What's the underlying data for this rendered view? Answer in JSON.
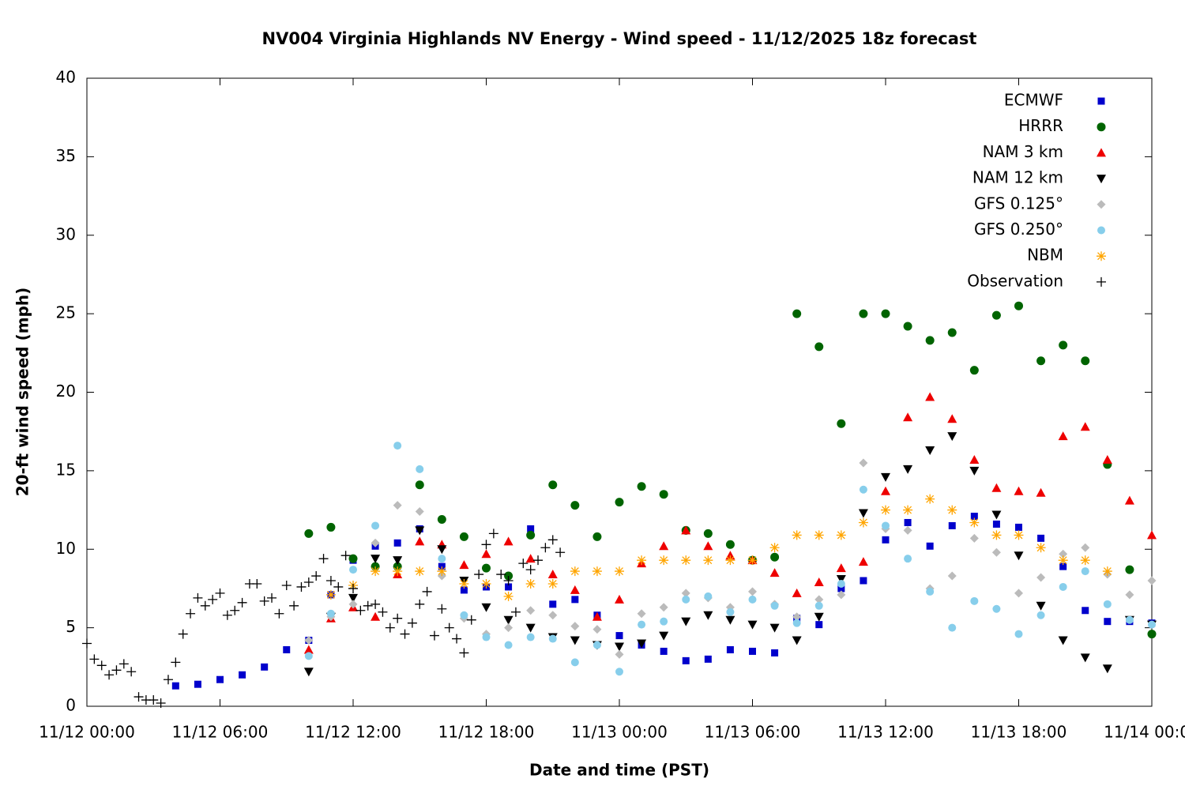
{
  "chart_data": {
    "type": "scatter",
    "title": "NV004 Virginia Highlands NV Energy - Wind speed - 11/12/2025 18z forecast",
    "x_label": "Date and time (PST)",
    "y_label": "20-ft wind speed (mph)",
    "xlim": [
      "11/12 00:00",
      "11/14 00:00"
    ],
    "xticks": [
      "11/12 00:00",
      "11/12 06:00",
      "11/12 12:00",
      "11/12 18:00",
      "11/13 00:00",
      "11/13 06:00",
      "11/13 12:00",
      "11/13 18:00",
      "11/14 00:00"
    ],
    "ylim": [
      0,
      40
    ],
    "yticks": [
      0,
      5,
      10,
      15,
      20,
      25,
      30,
      35,
      40
    ],
    "legend": "upper right",
    "series": [
      {
        "name": "ECMWF",
        "color": "#0000cc",
        "marker": "square",
        "x": [
          "11/12 04:00",
          "11/12 05:00",
          "11/12 06:00",
          "11/12 07:00",
          "11/12 08:00",
          "11/12 09:00",
          "11/12 10:00",
          "11/12 11:00",
          "11/12 12:00",
          "11/12 13:00",
          "11/12 14:00",
          "11/12 15:00",
          "11/12 16:00",
          "11/12 17:00",
          "11/12 18:00",
          "11/12 19:00",
          "11/12 20:00",
          "11/12 21:00",
          "11/12 22:00",
          "11/12 23:00",
          "11/13 00:00",
          "11/13 01:00",
          "11/13 02:00",
          "11/13 03:00",
          "11/13 04:00",
          "11/13 05:00",
          "11/13 06:00",
          "11/13 07:00",
          "11/13 08:00",
          "11/13 09:00",
          "11/13 10:00",
          "11/13 11:00",
          "11/13 12:00",
          "11/13 13:00",
          "11/13 14:00",
          "11/13 15:00",
          "11/13 16:00",
          "11/13 17:00",
          "11/13 18:00",
          "11/13 19:00",
          "11/13 20:00",
          "11/13 21:00",
          "11/13 22:00",
          "11/13 23:00",
          "11/14 00:00"
        ],
        "values": [
          1.3,
          1.4,
          1.7,
          2.0,
          2.5,
          3.6,
          4.2,
          7.1,
          9.3,
          10.2,
          10.4,
          11.3,
          8.9,
          7.4,
          7.6,
          7.6,
          11.3,
          6.5,
          6.8,
          5.8,
          4.5,
          3.9,
          3.5,
          2.9,
          3.0,
          3.6,
          3.5,
          3.4,
          5.6,
          5.2,
          7.5,
          8.0,
          10.6,
          11.7,
          10.2,
          11.5,
          12.1,
          11.6,
          11.4,
          10.7,
          8.9,
          6.1,
          5.4,
          5.4,
          5.3
        ]
      },
      {
        "name": "HRRR",
        "color": "#006400",
        "marker": "circle",
        "x": [
          "11/12 10:00",
          "11/12 11:00",
          "11/12 12:00",
          "11/12 13:00",
          "11/12 14:00",
          "11/12 15:00",
          "11/12 16:00",
          "11/12 17:00",
          "11/12 18:00",
          "11/12 19:00",
          "11/12 20:00",
          "11/12 21:00",
          "11/12 22:00",
          "11/12 23:00",
          "11/13 00:00",
          "11/13 01:00",
          "11/13 02:00",
          "11/13 03:00",
          "11/13 04:00",
          "11/13 05:00",
          "11/13 06:00",
          "11/13 07:00",
          "11/13 08:00",
          "11/13 09:00",
          "11/13 10:00",
          "11/13 11:00",
          "11/13 12:00",
          "11/13 13:00",
          "11/13 14:00",
          "11/13 15:00",
          "11/13 16:00",
          "11/13 17:00",
          "11/13 18:00",
          "11/13 19:00",
          "11/13 20:00",
          "11/13 21:00",
          "11/13 22:00",
          "11/13 23:00",
          "11/14 00:00"
        ],
        "values": [
          11.0,
          11.4,
          9.4,
          8.9,
          8.9,
          14.1,
          11.9,
          10.8,
          8.8,
          8.3,
          10.9,
          14.1,
          12.8,
          10.8,
          13.0,
          14.0,
          13.5,
          11.2,
          11.0,
          10.3,
          9.3,
          9.5,
          25.0,
          22.9,
          18.0,
          25.0,
          25.0,
          24.2,
          23.3,
          23.8,
          21.4,
          24.9,
          25.5,
          22.0,
          23.0,
          22.0,
          15.4,
          8.7,
          4.6
        ]
      },
      {
        "name": "NAM 3 km",
        "color": "#ee0000",
        "marker": "triangle",
        "x": [
          "11/12 10:00",
          "11/12 11:00",
          "11/12 12:00",
          "11/12 13:00",
          "11/12 14:00",
          "11/12 15:00",
          "11/12 16:00",
          "11/12 17:00",
          "11/12 18:00",
          "11/12 19:00",
          "11/12 20:00",
          "11/12 21:00",
          "11/12 22:00",
          "11/12 23:00",
          "11/13 00:00",
          "11/13 01:00",
          "11/13 02:00",
          "11/13 03:00",
          "11/13 04:00",
          "11/13 05:00",
          "11/13 06:00",
          "11/13 07:00",
          "11/13 08:00",
          "11/13 09:00",
          "11/13 10:00",
          "11/13 11:00",
          "11/13 12:00",
          "11/13 13:00",
          "11/13 14:00",
          "11/13 15:00",
          "11/13 16:00",
          "11/13 17:00",
          "11/13 18:00",
          "11/13 19:00",
          "11/13 20:00",
          "11/13 21:00",
          "11/13 22:00",
          "11/13 23:00",
          "11/14 00:00"
        ],
        "values": [
          3.6,
          5.6,
          6.3,
          5.7,
          8.4,
          10.5,
          10.3,
          9.0,
          9.7,
          10.5,
          9.4,
          8.4,
          7.4,
          5.7,
          6.8,
          9.1,
          10.2,
          11.2,
          10.2,
          9.6,
          9.3,
          8.5,
          7.2,
          7.9,
          8.8,
          9.2,
          13.7,
          18.4,
          19.7,
          18.3,
          15.7,
          13.9,
          13.7,
          13.6,
          17.2,
          17.8,
          15.7,
          13.1,
          10.9
        ]
      },
      {
        "name": "NAM 12 km",
        "color": "#000000",
        "marker": "triangle-down",
        "x": [
          "11/12 10:00",
          "11/12 11:00",
          "11/12 12:00",
          "11/12 13:00",
          "11/12 14:00",
          "11/12 15:00",
          "11/12 16:00",
          "11/12 17:00",
          "11/12 18:00",
          "11/12 19:00",
          "11/12 20:00",
          "11/12 21:00",
          "11/12 22:00",
          "11/12 23:00",
          "11/13 00:00",
          "11/13 01:00",
          "11/13 02:00",
          "11/13 03:00",
          "11/13 04:00",
          "11/13 05:00",
          "11/13 06:00",
          "11/13 07:00",
          "11/13 08:00",
          "11/13 09:00",
          "11/13 10:00",
          "11/13 11:00",
          "11/13 12:00",
          "11/13 13:00",
          "11/13 14:00",
          "11/13 15:00",
          "11/13 16:00",
          "11/13 17:00",
          "11/13 18:00",
          "11/13 19:00",
          "11/13 20:00",
          "11/13 21:00",
          "11/13 22:00",
          "11/13 23:00",
          "11/14 00:00"
        ],
        "values": [
          2.2,
          5.7,
          6.9,
          9.4,
          9.3,
          11.2,
          10.0,
          8.0,
          6.3,
          5.5,
          5.0,
          4.4,
          4.2,
          3.9,
          3.8,
          4.0,
          4.5,
          5.4,
          5.8,
          5.5,
          5.2,
          5.0,
          4.2,
          5.7,
          8.1,
          12.3,
          14.6,
          15.1,
          16.3,
          17.2,
          15.0,
          12.2,
          9.6,
          6.4,
          4.2,
          3.1,
          2.4,
          5.5,
          5.2
        ]
      },
      {
        "name": "GFS 0.125°",
        "color": "#bbbbbb",
        "marker": "diamond",
        "x": [
          "11/12 10:00",
          "11/12 11:00",
          "11/12 12:00",
          "11/12 13:00",
          "11/12 14:00",
          "11/12 15:00",
          "11/12 16:00",
          "11/12 17:00",
          "11/12 18:00",
          "11/12 19:00",
          "11/12 20:00",
          "11/12 21:00",
          "11/12 22:00",
          "11/12 23:00",
          "11/13 00:00",
          "11/13 01:00",
          "11/13 02:00",
          "11/13 03:00",
          "11/13 04:00",
          "11/13 05:00",
          "11/13 06:00",
          "11/13 07:00",
          "11/13 08:00",
          "11/13 09:00",
          "11/13 10:00",
          "11/13 11:00",
          "11/13 12:00",
          "11/13 13:00",
          "11/13 14:00",
          "11/13 15:00",
          "11/13 16:00",
          "11/13 17:00",
          "11/13 18:00",
          "11/13 19:00",
          "11/13 20:00",
          "11/13 21:00",
          "11/13 22:00",
          "11/13 23:00",
          "11/14 00:00"
        ],
        "values": [
          4.2,
          5.7,
          6.5,
          10.4,
          12.8,
          12.4,
          8.3,
          5.6,
          4.6,
          5.0,
          6.1,
          5.8,
          5.1,
          4.9,
          3.3,
          5.9,
          6.3,
          7.2,
          6.9,
          6.3,
          7.3,
          6.5,
          5.7,
          6.8,
          7.1,
          15.5,
          11.3,
          11.2,
          7.5,
          8.3,
          10.7,
          9.8,
          7.2,
          8.2,
          9.7,
          10.1,
          8.4,
          7.1,
          8.0
        ]
      },
      {
        "name": "GFS 0.250°",
        "color": "#87ceeb",
        "marker": "hexagon",
        "x": [
          "11/12 10:00",
          "11/12 11:00",
          "11/12 12:00",
          "11/12 13:00",
          "11/12 14:00",
          "11/12 15:00",
          "11/12 16:00",
          "11/12 17:00",
          "11/12 18:00",
          "11/12 19:00",
          "11/12 20:00",
          "11/12 21:00",
          "11/12 22:00",
          "11/12 23:00",
          "11/13 00:00",
          "11/13 01:00",
          "11/13 02:00",
          "11/13 03:00",
          "11/13 04:00",
          "11/13 05:00",
          "11/13 06:00",
          "11/13 07:00",
          "11/13 08:00",
          "11/13 09:00",
          "11/13 10:00",
          "11/13 11:00",
          "11/13 12:00",
          "11/13 13:00",
          "11/13 14:00",
          "11/13 15:00",
          "11/13 16:00",
          "11/13 17:00",
          "11/13 18:00",
          "11/13 19:00",
          "11/13 20:00",
          "11/13 21:00",
          "11/13 22:00",
          "11/13 23:00",
          "11/14 00:00"
        ],
        "values": [
          3.2,
          5.9,
          8.7,
          11.5,
          16.6,
          15.1,
          9.4,
          5.8,
          4.4,
          3.9,
          4.4,
          4.3,
          2.8,
          3.9,
          2.2,
          5.2,
          5.4,
          6.8,
          7.0,
          6.0,
          6.8,
          6.4,
          5.3,
          6.4,
          7.8,
          13.8,
          11.5,
          9.4,
          7.3,
          5.0,
          6.7,
          6.2,
          4.6,
          5.8,
          7.6,
          8.6,
          6.5,
          5.5,
          5.2
        ]
      },
      {
        "name": "NBM",
        "color": "#ffa500",
        "marker": "asterisk",
        "x": [
          "11/12 11:00",
          "11/12 12:00",
          "11/12 13:00",
          "11/12 14:00",
          "11/12 15:00",
          "11/12 16:00",
          "11/12 17:00",
          "11/12 18:00",
          "11/12 19:00",
          "11/12 20:00",
          "11/12 21:00",
          "11/12 22:00",
          "11/12 23:00",
          "11/13 00:00",
          "11/13 01:00",
          "11/13 02:00",
          "11/13 03:00",
          "11/13 04:00",
          "11/13 05:00",
          "11/13 06:00",
          "11/13 07:00",
          "11/13 08:00",
          "11/13 09:00",
          "11/13 10:00",
          "11/13 11:00",
          "11/13 12:00",
          "11/13 13:00",
          "11/13 14:00",
          "11/13 15:00",
          "11/13 16:00",
          "11/13 17:00",
          "11/13 18:00",
          "11/13 19:00",
          "11/13 20:00",
          "11/13 21:00",
          "11/13 22:00"
        ],
        "values": [
          7.1,
          7.7,
          8.6,
          8.6,
          8.6,
          8.6,
          7.8,
          7.8,
          7.0,
          7.8,
          7.8,
          8.6,
          8.6,
          8.6,
          9.3,
          9.3,
          9.3,
          9.3,
          9.3,
          9.3,
          10.1,
          10.9,
          10.9,
          10.9,
          11.7,
          12.5,
          12.5,
          13.2,
          12.5,
          11.7,
          10.9,
          10.9,
          10.1,
          9.3,
          9.3,
          8.6
        ]
      },
      {
        "name": "Observation",
        "color": "#000000",
        "marker": "plus",
        "x": [
          "11/12 00:00",
          "11/12 00:20",
          "11/12 00:40",
          "11/12 01:00",
          "11/12 01:20",
          "11/12 01:40",
          "11/12 02:00",
          "11/12 02:20",
          "11/12 02:40",
          "11/12 03:00",
          "11/12 03:20",
          "11/12 03:40",
          "11/12 04:00",
          "11/12 04:20",
          "11/12 04:40",
          "11/12 05:00",
          "11/12 05:20",
          "11/12 05:40",
          "11/12 06:00",
          "11/12 06:20",
          "11/12 06:40",
          "11/12 07:00",
          "11/12 07:20",
          "11/12 07:40",
          "11/12 08:00",
          "11/12 08:20",
          "11/12 08:40",
          "11/12 09:00",
          "11/12 09:20",
          "11/12 09:40",
          "11/12 10:00",
          "11/12 10:20",
          "11/12 10:40",
          "11/12 11:00",
          "11/12 11:20",
          "11/12 11:40",
          "11/12 12:00",
          "11/12 12:20",
          "11/12 12:40",
          "11/12 13:00",
          "11/12 13:20",
          "11/12 13:40",
          "11/12 14:00",
          "11/12 14:20",
          "11/12 14:40",
          "11/12 15:00",
          "11/12 15:20",
          "11/12 15:40",
          "11/12 16:00",
          "11/12 16:20",
          "11/12 16:40",
          "11/12 17:00",
          "11/12 17:20",
          "11/12 17:40",
          "11/12 18:00",
          "11/12 18:20",
          "11/12 18:40",
          "11/12 19:00",
          "11/12 19:20",
          "11/12 19:40",
          "11/12 20:00",
          "11/12 20:20",
          "11/12 20:40",
          "11/12 21:00",
          "11/12 21:20"
        ],
        "values": [
          4.0,
          3.0,
          2.6,
          2.0,
          2.3,
          2.7,
          2.2,
          0.6,
          0.4,
          0.4,
          0.2,
          1.7,
          2.8,
          4.6,
          5.9,
          6.9,
          6.4,
          6.8,
          7.2,
          5.8,
          6.1,
          6.6,
          7.8,
          7.8,
          6.7,
          6.9,
          5.9,
          7.7,
          6.4,
          7.6,
          7.9,
          8.3,
          9.4,
          8.0,
          7.6,
          9.6,
          7.5,
          6.1,
          6.4,
          6.5,
          6.0,
          5.0,
          5.6,
          4.6,
          5.3,
          6.5,
          7.3,
          4.5,
          6.2,
          5.0,
          4.3,
          3.4,
          5.5,
          8.4,
          10.3,
          11.0,
          8.4,
          8.0,
          6.0,
          9.1,
          8.7,
          9.3,
          10.1,
          10.6,
          9.8
        ]
      }
    ]
  }
}
